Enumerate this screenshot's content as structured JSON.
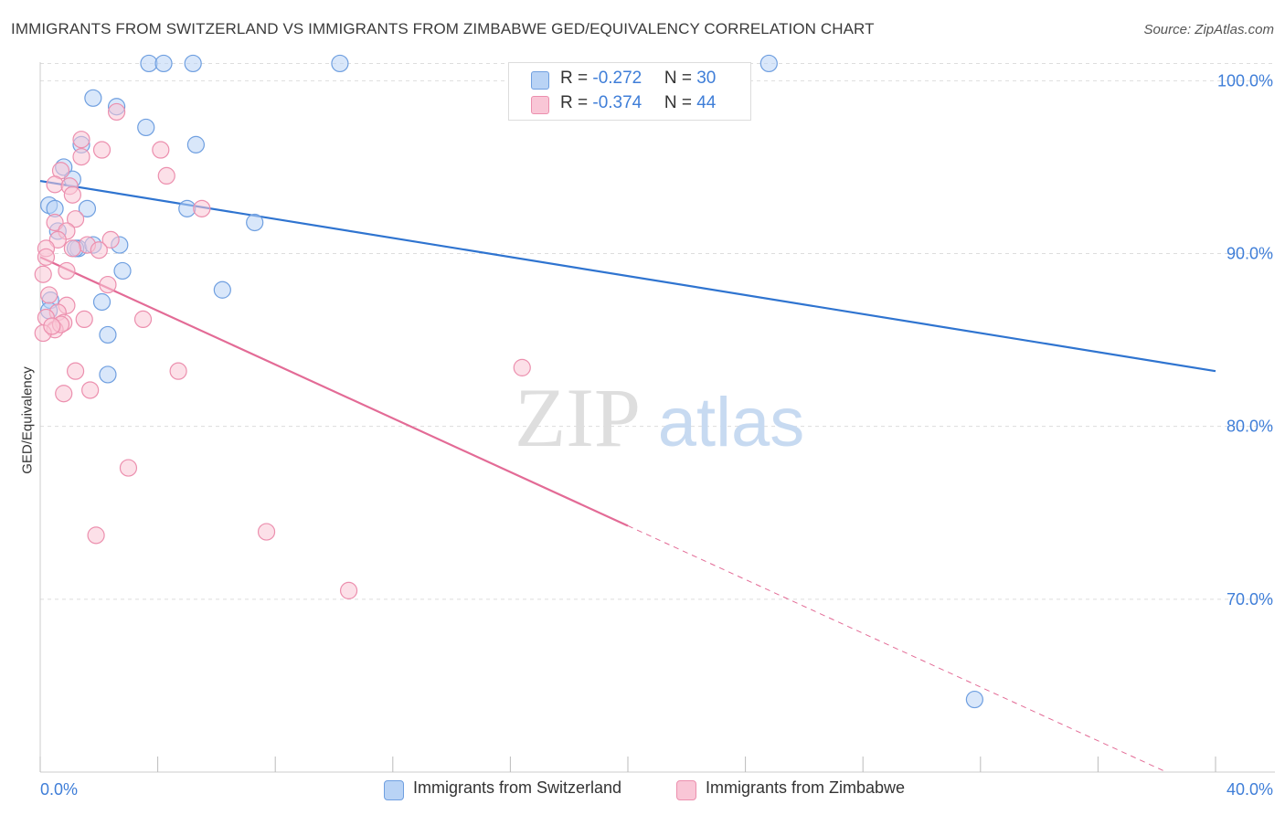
{
  "header": {
    "title": "IMMIGRANTS FROM SWITZERLAND VS IMMIGRANTS FROM ZIMBABWE GED/EQUIVALENCY CORRELATION CHART",
    "source": "Source: ZipAtlas.com"
  },
  "watermark": {
    "zip": "ZIP",
    "atlas": "atlas"
  },
  "legend": {
    "r_label": "R = ",
    "n_label": "N = ",
    "series": [
      {
        "name": "Immigrants from Switzerland",
        "r": "-0.272",
        "n": "30"
      },
      {
        "name": "Immigrants from Zimbabwe",
        "r": "-0.374",
        "n": "44"
      }
    ]
  },
  "colors": {
    "blue_fill": "#b9d3f5",
    "blue_stroke": "#6f9fe0",
    "blue_line": "#2f74d0",
    "pink_fill": "#f9c6d6",
    "pink_stroke": "#ec8fae",
    "pink_line": "#e36b96",
    "tick_label": "#3f7ed8",
    "grid": "#dddddd"
  },
  "chart_data": {
    "type": "scatter",
    "title": "IMMIGRANTS FROM SWITZERLAND VS IMMIGRANTS FROM ZIMBABWE GED/EQUIVALENCY CORRELATION CHART",
    "xlabel": "",
    "ylabel": "GED/Equivalency",
    "xlim": [
      0,
      40
    ],
    "ylim": [
      60,
      101.5
    ],
    "x_tick_labels": [
      "0.0%",
      "40.0%"
    ],
    "y_ticks": [
      70,
      80,
      90,
      100
    ],
    "y_tick_labels": [
      "70.0%",
      "80.0%",
      "90.0%",
      "100.0%"
    ],
    "grid": true,
    "legend_position": "top-center",
    "series": [
      {
        "name": "Immigrants from Switzerland",
        "color": "blue",
        "r": -0.272,
        "n": 30,
        "points": [
          [
            3.7,
            101
          ],
          [
            4.2,
            101
          ],
          [
            5.2,
            101
          ],
          [
            10.2,
            101
          ],
          [
            24.8,
            101
          ],
          [
            1.8,
            99
          ],
          [
            2.6,
            98.5
          ],
          [
            3.6,
            97.3
          ],
          [
            1.4,
            96.3
          ],
          [
            5.3,
            96.3
          ],
          [
            0.8,
            95
          ],
          [
            1.1,
            94.3
          ],
          [
            0.3,
            92.8
          ],
          [
            0.5,
            92.6
          ],
          [
            1.6,
            92.6
          ],
          [
            5.0,
            92.6
          ],
          [
            7.3,
            91.8
          ],
          [
            0.6,
            91.3
          ],
          [
            1.3,
            90.3
          ],
          [
            1.8,
            90.5
          ],
          [
            2.7,
            90.5
          ],
          [
            2.8,
            89
          ],
          [
            6.2,
            87.9
          ],
          [
            2.1,
            87.2
          ],
          [
            0.35,
            87.3
          ],
          [
            0.3,
            86.7
          ],
          [
            2.3,
            85.3
          ],
          [
            2.3,
            83
          ],
          [
            31.8,
            64.2
          ],
          [
            1.2,
            90.3
          ]
        ],
        "trend": {
          "x": [
            0,
            40
          ],
          "y": [
            94.2,
            83.2
          ],
          "dashed_from": null
        }
      },
      {
        "name": "Immigrants from Zimbabwe",
        "color": "pink",
        "r": -0.374,
        "n": 44,
        "points": [
          [
            2.6,
            98.2
          ],
          [
            1.4,
            96.6
          ],
          [
            2.1,
            96
          ],
          [
            4.1,
            96
          ],
          [
            1.4,
            95.6
          ],
          [
            0.7,
            94.8
          ],
          [
            4.3,
            94.5
          ],
          [
            0.5,
            94
          ],
          [
            1.0,
            93.9
          ],
          [
            1.1,
            93.4
          ],
          [
            5.5,
            92.6
          ],
          [
            1.2,
            92
          ],
          [
            0.5,
            91.8
          ],
          [
            0.9,
            91.3
          ],
          [
            0.6,
            90.8
          ],
          [
            0.2,
            90.3
          ],
          [
            2.4,
            90.8
          ],
          [
            1.6,
            90.5
          ],
          [
            1.1,
            90.3
          ],
          [
            0.2,
            89.8
          ],
          [
            2.0,
            90.2
          ],
          [
            0.9,
            89
          ],
          [
            0.1,
            88.8
          ],
          [
            2.3,
            88.2
          ],
          [
            0.3,
            87.6
          ],
          [
            0.9,
            87
          ],
          [
            0.6,
            86.6
          ],
          [
            0.2,
            86.3
          ],
          [
            0.8,
            86
          ],
          [
            1.5,
            86.2
          ],
          [
            3.5,
            86.2
          ],
          [
            0.5,
            85.6
          ],
          [
            0.7,
            85.9
          ],
          [
            0.1,
            85.4
          ],
          [
            1.2,
            83.2
          ],
          [
            4.7,
            83.2
          ],
          [
            16.4,
            83.4
          ],
          [
            0.8,
            81.9
          ],
          [
            1.7,
            82.1
          ],
          [
            3.0,
            77.6
          ],
          [
            1.9,
            73.7
          ],
          [
            7.7,
            73.9
          ],
          [
            10.5,
            70.5
          ],
          [
            0.4,
            85.8
          ]
        ],
        "trend": {
          "x": [
            0,
            40
          ],
          "y": [
            89.8,
            58.7
          ],
          "dashed_from": 20
        }
      }
    ]
  }
}
